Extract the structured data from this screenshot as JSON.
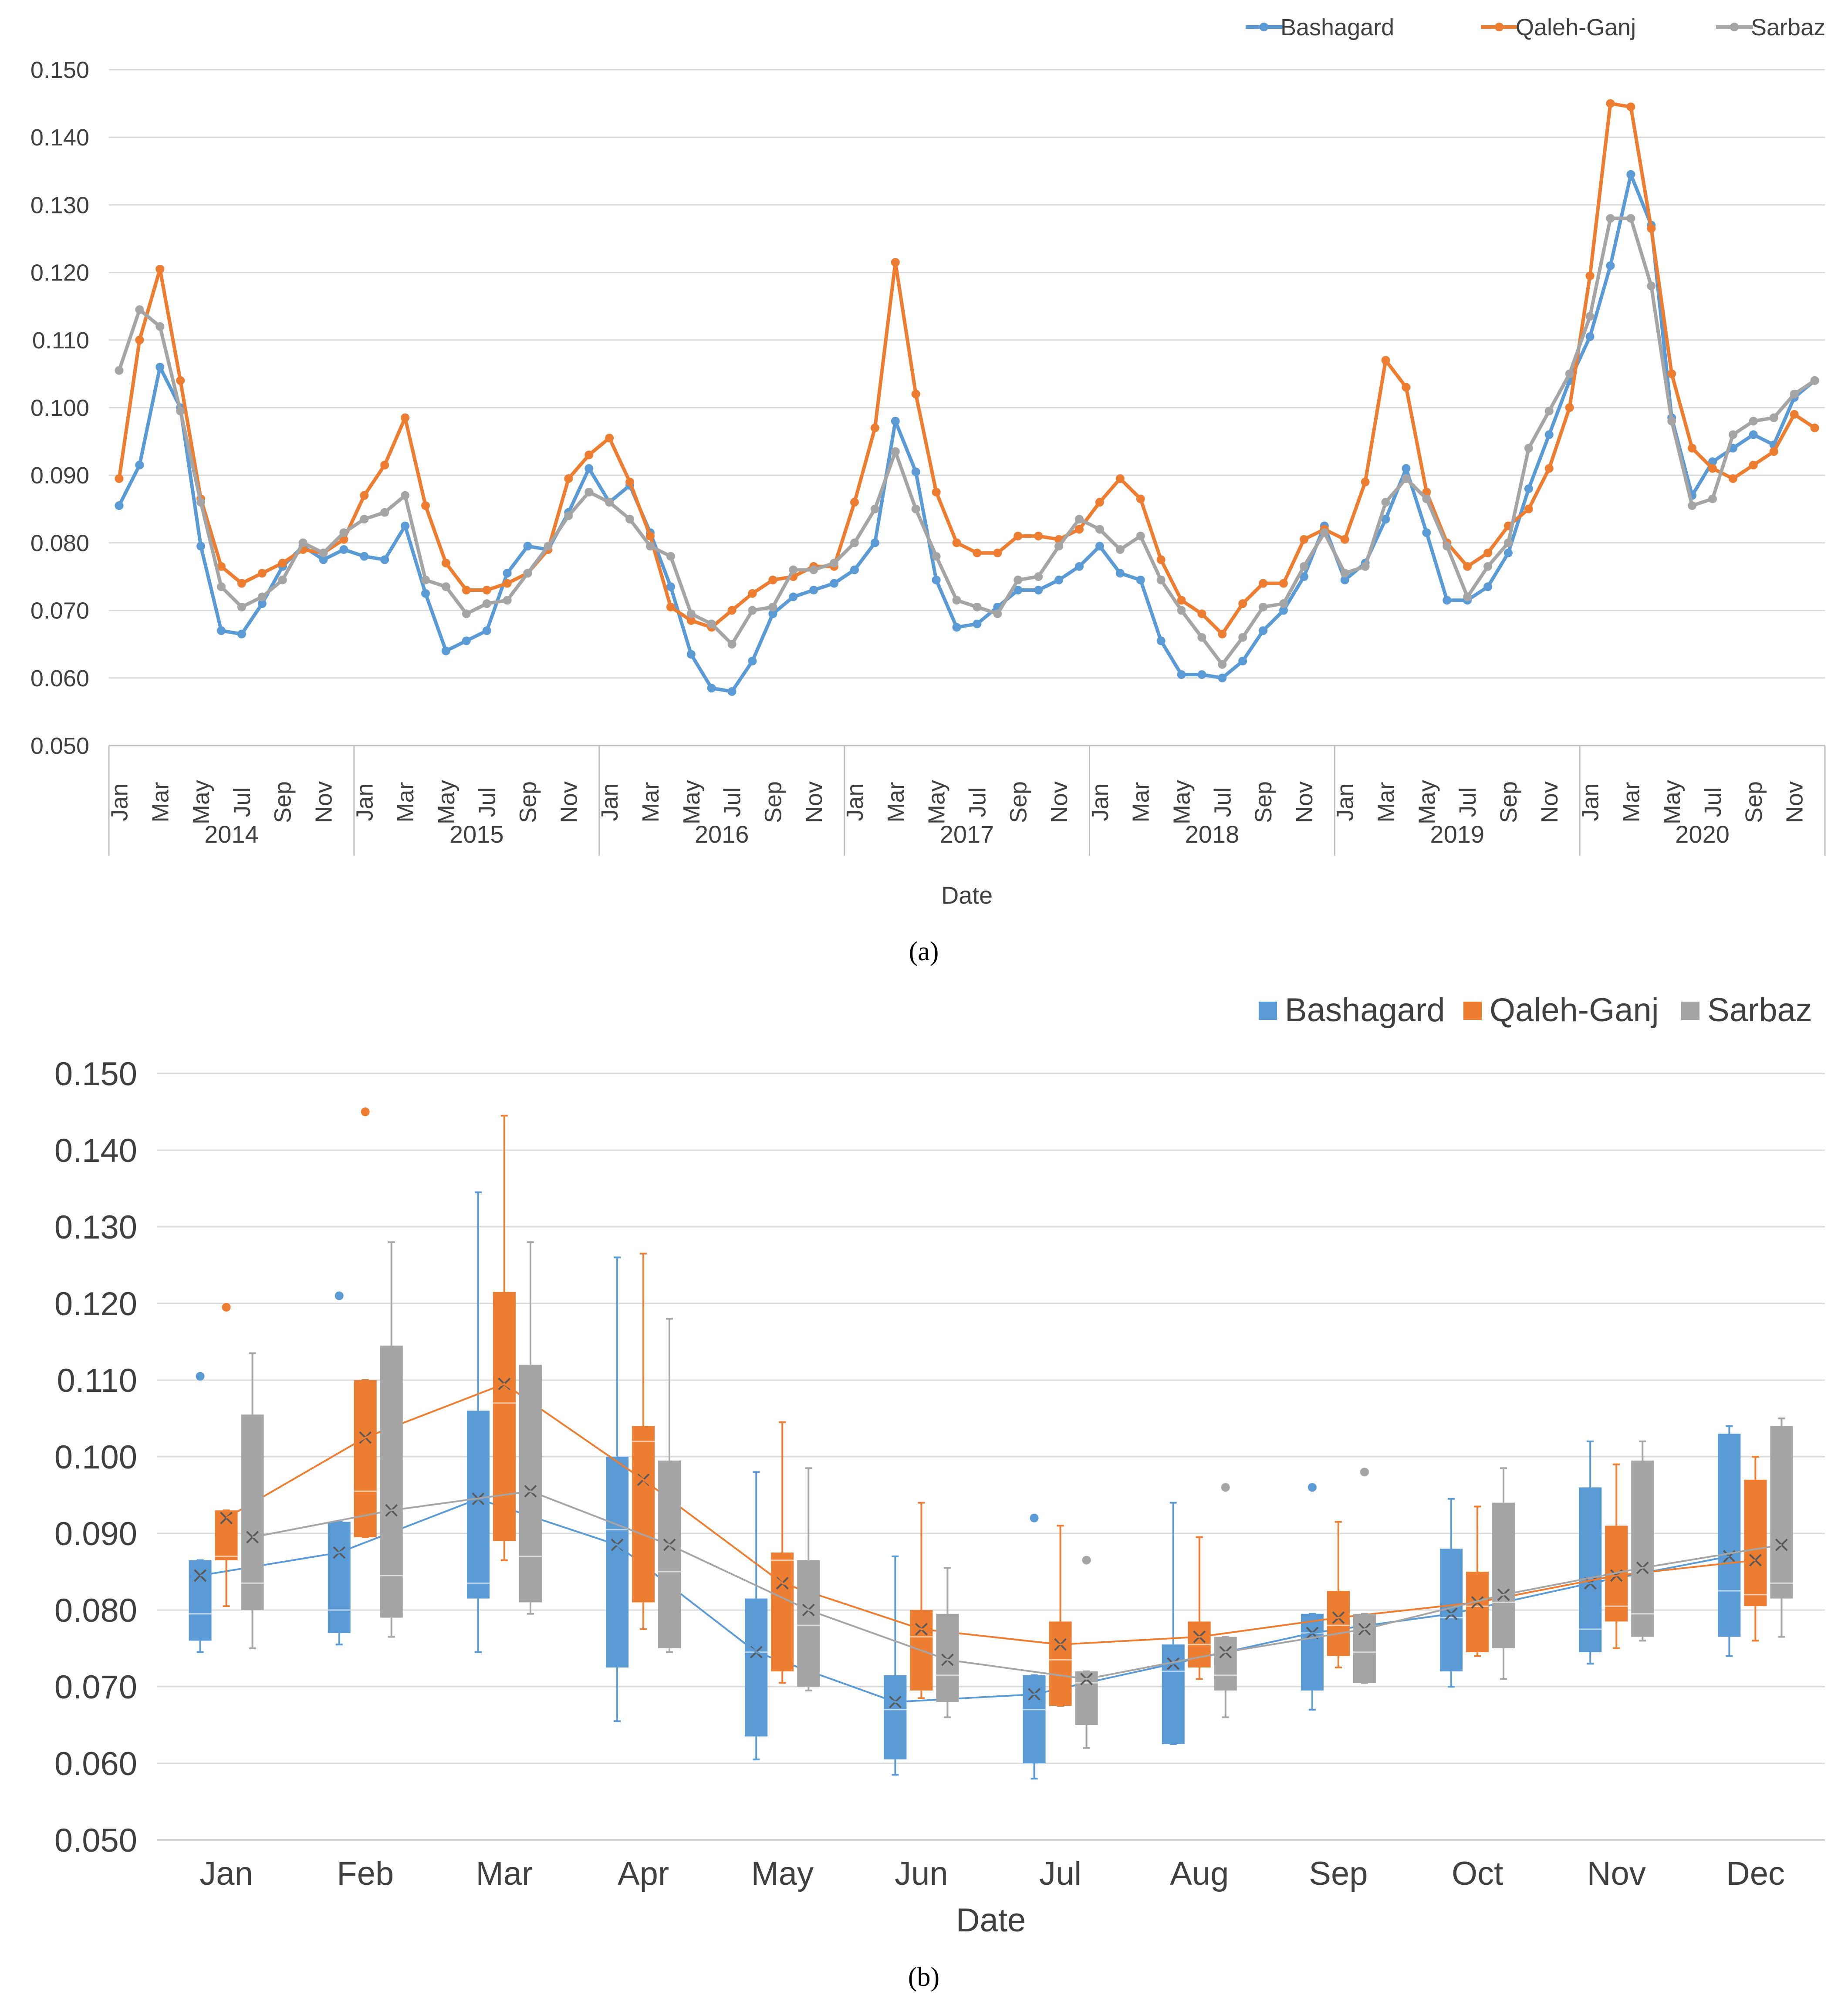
{
  "colors": {
    "Bashagard": "#5b9bd5",
    "Qaleh-Ganj": "#ed7d31",
    "Sarbaz": "#a5a5a5",
    "grid": "#d9d9d9",
    "axis": "#bfbfbf"
  },
  "captions": {
    "a": "(a)",
    "b": "(b)"
  },
  "chart_data": [
    {
      "type": "line",
      "xlabel": "Date",
      "ylabel": "",
      "ylim": [
        0.05,
        0.15
      ],
      "yticks": [
        "0.050",
        "0.060",
        "0.070",
        "0.080",
        "0.090",
        "0.100",
        "0.110",
        "0.120",
        "0.130",
        "0.140",
        "0.150"
      ],
      "grid": true,
      "legend_position": "top-right",
      "years": [
        "2014",
        "2015",
        "2016",
        "2017",
        "2018",
        "2019",
        "2020"
      ],
      "month_tick_labels": [
        "Jan",
        "Mar",
        "May",
        "Jul",
        "Sep",
        "Nov"
      ],
      "series": [
        {
          "name": "Bashagard",
          "values": [
            0.0855,
            0.0915,
            0.106,
            0.1,
            0.0795,
            0.067,
            0.0665,
            0.071,
            0.0765,
            0.0795,
            0.0775,
            0.079,
            0.078,
            0.0775,
            0.0825,
            0.0725,
            0.064,
            0.0655,
            0.067,
            0.0755,
            0.0795,
            0.079,
            0.0845,
            0.091,
            0.086,
            0.0885,
            0.0815,
            0.0735,
            0.0635,
            0.0585,
            0.058,
            0.0625,
            0.0695,
            0.072,
            0.073,
            0.074,
            0.076,
            0.08,
            0.098,
            0.0905,
            0.0745,
            0.0675,
            0.068,
            0.0705,
            0.073,
            0.073,
            0.0745,
            0.0765,
            0.0795,
            0.0755,
            0.0745,
            0.0655,
            0.0605,
            0.0605,
            0.06,
            0.0625,
            0.067,
            0.07,
            0.075,
            0.0825,
            0.0745,
            0.077,
            0.0835,
            0.091,
            0.0815,
            0.0715,
            0.0715,
            0.0735,
            0.0785,
            0.088,
            0.096,
            0.104,
            0.1105,
            0.121,
            0.1345,
            0.127,
            0.0985,
            0.087,
            0.092,
            0.094,
            0.096,
            0.0945,
            0.1015,
            0.104
          ]
        },
        {
          "name": "Qaleh-Ganj",
          "values": [
            0.0895,
            0.11,
            0.1205,
            0.104,
            0.0865,
            0.0765,
            0.074,
            0.0755,
            0.077,
            0.079,
            0.0785,
            0.0805,
            0.087,
            0.0915,
            0.0985,
            0.0855,
            0.077,
            0.073,
            0.073,
            0.074,
            0.0755,
            0.079,
            0.0895,
            0.093,
            0.0955,
            0.089,
            0.081,
            0.0705,
            0.0685,
            0.0675,
            0.07,
            0.0725,
            0.0745,
            0.075,
            0.0765,
            0.0765,
            0.086,
            0.097,
            0.1215,
            0.102,
            0.0875,
            0.08,
            0.0785,
            0.0785,
            0.081,
            0.081,
            0.0805,
            0.082,
            0.086,
            0.0895,
            0.0865,
            0.0775,
            0.0715,
            0.0695,
            0.0665,
            0.071,
            0.074,
            0.074,
            0.0805,
            0.082,
            0.0805,
            0.089,
            0.107,
            0.103,
            0.0875,
            0.08,
            0.0765,
            0.0785,
            0.0825,
            0.085,
            0.091,
            0.1,
            0.1195,
            0.145,
            0.1445,
            0.1265,
            0.105,
            0.094,
            0.091,
            0.0895,
            0.0915,
            0.0935,
            0.099,
            0.097
          ]
        },
        {
          "name": "Sarbaz",
          "values": [
            0.1055,
            0.1145,
            0.112,
            0.0995,
            0.086,
            0.0735,
            0.0705,
            0.072,
            0.0745,
            0.08,
            0.0785,
            0.0815,
            0.0835,
            0.0845,
            0.087,
            0.0745,
            0.0735,
            0.0695,
            0.071,
            0.0715,
            0.0755,
            0.0795,
            0.084,
            0.0875,
            0.086,
            0.0835,
            0.0795,
            0.078,
            0.0695,
            0.068,
            0.065,
            0.07,
            0.0705,
            0.076,
            0.076,
            0.077,
            0.08,
            0.085,
            0.0935,
            0.085,
            0.078,
            0.0715,
            0.0705,
            0.0695,
            0.0745,
            0.075,
            0.0795,
            0.0835,
            0.082,
            0.079,
            0.081,
            0.0745,
            0.07,
            0.066,
            0.062,
            0.066,
            0.0705,
            0.071,
            0.0765,
            0.0815,
            0.0755,
            0.0765,
            0.086,
            0.0895,
            0.0865,
            0.0795,
            0.072,
            0.0765,
            0.08,
            0.094,
            0.0995,
            0.105,
            0.1135,
            0.128,
            0.128,
            0.118,
            0.098,
            0.0855,
            0.0865,
            0.096,
            0.098,
            0.0985,
            0.102,
            0.104
          ]
        }
      ]
    },
    {
      "type": "box",
      "xlabel": "Date",
      "ylabel": "",
      "ylim": [
        0.05,
        0.15
      ],
      "yticks": [
        "0.050",
        "0.060",
        "0.070",
        "0.080",
        "0.090",
        "0.100",
        "0.110",
        "0.120",
        "0.130",
        "0.140",
        "0.150"
      ],
      "grid": true,
      "legend_position": "top-right",
      "categories": [
        "Jan",
        "Feb",
        "Mar",
        "Apr",
        "May",
        "Jun",
        "Jul",
        "Aug",
        "Sep",
        "Oct",
        "Nov",
        "Dec"
      ],
      "series": [
        {
          "name": "Bashagard",
          "boxes": [
            {
              "min": 0.0745,
              "q1": 0.076,
              "median": 0.0795,
              "q3": 0.0865,
              "max": 0.0865,
              "mean": 0.0845,
              "outliers": [
                0.1105
              ]
            },
            {
              "min": 0.0755,
              "q1": 0.077,
              "median": 0.08,
              "q3": 0.0915,
              "max": 0.0915,
              "mean": 0.0875,
              "outliers": [
                0.121
              ]
            },
            {
              "min": 0.0745,
              "q1": 0.0815,
              "median": 0.0835,
              "q3": 0.106,
              "max": 0.1345,
              "mean": 0.0945,
              "outliers": []
            },
            {
              "min": 0.0655,
              "q1": 0.0725,
              "median": 0.0905,
              "q3": 0.1,
              "max": 0.126,
              "mean": 0.0885,
              "outliers": []
            },
            {
              "min": 0.0605,
              "q1": 0.0635,
              "median": 0.0745,
              "q3": 0.0815,
              "max": 0.098,
              "mean": 0.0745,
              "outliers": []
            },
            {
              "min": 0.0585,
              "q1": 0.0605,
              "median": 0.067,
              "q3": 0.0715,
              "max": 0.087,
              "mean": 0.068,
              "outliers": []
            },
            {
              "min": 0.058,
              "q1": 0.06,
              "median": 0.067,
              "q3": 0.0715,
              "max": 0.0715,
              "mean": 0.069,
              "outliers": [
                0.092
              ]
            },
            {
              "min": 0.0625,
              "q1": 0.0625,
              "median": 0.072,
              "q3": 0.0755,
              "max": 0.094,
              "mean": 0.073,
              "outliers": []
            },
            {
              "min": 0.067,
              "q1": 0.0695,
              "median": 0.077,
              "q3": 0.0795,
              "max": 0.0795,
              "mean": 0.077,
              "outliers": [
                0.096
              ]
            },
            {
              "min": 0.07,
              "q1": 0.072,
              "median": 0.079,
              "q3": 0.088,
              "max": 0.0945,
              "mean": 0.0795,
              "outliers": []
            },
            {
              "min": 0.073,
              "q1": 0.0745,
              "median": 0.0775,
              "q3": 0.096,
              "max": 0.102,
              "mean": 0.0835,
              "outliers": []
            },
            {
              "min": 0.074,
              "q1": 0.0765,
              "median": 0.0825,
              "q3": 0.103,
              "max": 0.104,
              "mean": 0.087,
              "outliers": []
            }
          ]
        },
        {
          "name": "Qaleh-Ganj",
          "boxes": [
            {
              "min": 0.0805,
              "q1": 0.0865,
              "median": 0.087,
              "q3": 0.093,
              "max": 0.093,
              "mean": 0.092,
              "outliers": [
                0.1195
              ]
            },
            {
              "min": 0.0895,
              "q1": 0.0895,
              "median": 0.0955,
              "q3": 0.11,
              "max": 0.11,
              "mean": 0.1025,
              "outliers": [
                0.145
              ]
            },
            {
              "min": 0.0865,
              "q1": 0.089,
              "median": 0.107,
              "q3": 0.1215,
              "max": 0.1445,
              "mean": 0.1095,
              "outliers": []
            },
            {
              "min": 0.0775,
              "q1": 0.081,
              "median": 0.102,
              "q3": 0.104,
              "max": 0.1265,
              "mean": 0.097,
              "outliers": []
            },
            {
              "min": 0.0705,
              "q1": 0.072,
              "median": 0.0865,
              "q3": 0.0875,
              "max": 0.1045,
              "mean": 0.0835,
              "outliers": []
            },
            {
              "min": 0.0685,
              "q1": 0.0695,
              "median": 0.0765,
              "q3": 0.08,
              "max": 0.094,
              "mean": 0.0775,
              "outliers": []
            },
            {
              "min": 0.0675,
              "q1": 0.0675,
              "median": 0.0735,
              "q3": 0.0785,
              "max": 0.091,
              "mean": 0.0755,
              "outliers": []
            },
            {
              "min": 0.071,
              "q1": 0.0725,
              "median": 0.0755,
              "q3": 0.0785,
              "max": 0.0895,
              "mean": 0.0765,
              "outliers": []
            },
            {
              "min": 0.0725,
              "q1": 0.074,
              "median": 0.078,
              "q3": 0.0825,
              "max": 0.0915,
              "mean": 0.079,
              "outliers": []
            },
            {
              "min": 0.074,
              "q1": 0.0745,
              "median": 0.0805,
              "q3": 0.085,
              "max": 0.0935,
              "mean": 0.081,
              "outliers": []
            },
            {
              "min": 0.075,
              "q1": 0.0785,
              "median": 0.0805,
              "q3": 0.091,
              "max": 0.099,
              "mean": 0.0845,
              "outliers": []
            },
            {
              "min": 0.076,
              "q1": 0.0805,
              "median": 0.082,
              "q3": 0.097,
              "max": 0.1,
              "mean": 0.0865,
              "outliers": []
            }
          ]
        },
        {
          "name": "Sarbaz",
          "boxes": [
            {
              "min": 0.075,
              "q1": 0.08,
              "median": 0.0835,
              "q3": 0.1055,
              "max": 0.1135,
              "mean": 0.0895,
              "outliers": []
            },
            {
              "min": 0.0765,
              "q1": 0.079,
              "median": 0.0845,
              "q3": 0.1145,
              "max": 0.128,
              "mean": 0.093,
              "outliers": []
            },
            {
              "min": 0.0795,
              "q1": 0.081,
              "median": 0.087,
              "q3": 0.112,
              "max": 0.128,
              "mean": 0.0955,
              "outliers": []
            },
            {
              "min": 0.0745,
              "q1": 0.075,
              "median": 0.085,
              "q3": 0.0995,
              "max": 0.118,
              "mean": 0.0885,
              "outliers": []
            },
            {
              "min": 0.0695,
              "q1": 0.07,
              "median": 0.078,
              "q3": 0.0865,
              "max": 0.0985,
              "mean": 0.08,
              "outliers": []
            },
            {
              "min": 0.066,
              "q1": 0.068,
              "median": 0.0715,
              "q3": 0.0795,
              "max": 0.0855,
              "mean": 0.0735,
              "outliers": []
            },
            {
              "min": 0.062,
              "q1": 0.065,
              "median": 0.0705,
              "q3": 0.072,
              "max": 0.072,
              "mean": 0.071,
              "outliers": [
                0.0865
              ]
            },
            {
              "min": 0.066,
              "q1": 0.0695,
              "median": 0.0715,
              "q3": 0.0765,
              "max": 0.0765,
              "mean": 0.0745,
              "outliers": [
                0.096
              ]
            },
            {
              "min": 0.0705,
              "q1": 0.0705,
              "median": 0.0745,
              "q3": 0.0795,
              "max": 0.0795,
              "mean": 0.0775,
              "outliers": [
                0.098
              ]
            },
            {
              "min": 0.071,
              "q1": 0.075,
              "median": 0.081,
              "q3": 0.094,
              "max": 0.0985,
              "mean": 0.082,
              "outliers": []
            },
            {
              "min": 0.076,
              "q1": 0.0765,
              "median": 0.0795,
              "q3": 0.0995,
              "max": 0.102,
              "mean": 0.0855,
              "outliers": []
            },
            {
              "min": 0.0765,
              "q1": 0.0815,
              "median": 0.0835,
              "q3": 0.104,
              "max": 0.105,
              "mean": 0.0885,
              "outliers": []
            }
          ]
        }
      ]
    }
  ]
}
